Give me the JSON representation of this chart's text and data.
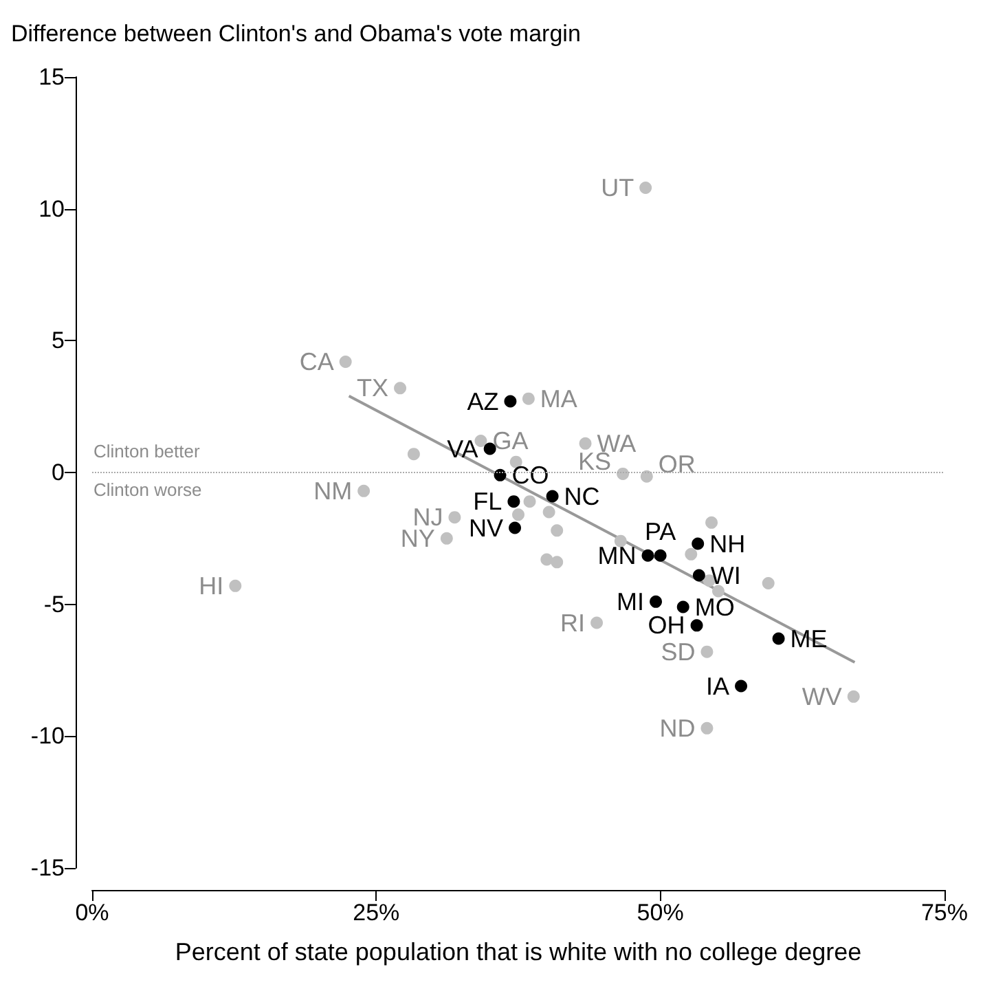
{
  "chart_data": {
    "type": "scatter",
    "ylabel": "Difference between Clinton's and Obama's vote margin",
    "xlabel": "Percent of state population that is white with no college degree",
    "xlim": [
      0,
      75
    ],
    "ylim": [
      -15,
      15
    ],
    "xticks": [
      {
        "value": 0,
        "label": "0%"
      },
      {
        "value": 25,
        "label": "25%"
      },
      {
        "value": 50,
        "label": "50%"
      },
      {
        "value": 75,
        "label": "75%"
      }
    ],
    "yticks": [
      -15,
      -10,
      -5,
      0,
      5,
      10,
      15
    ],
    "grid": false,
    "marker": "circle",
    "ref_lines": [
      {
        "axis": "y",
        "value": 0,
        "line_style": "dotted",
        "color": "#aaaaaa"
      }
    ],
    "annotations": [
      "Clinton better",
      "Clinton worse"
    ],
    "series": [
      {
        "color": "#c0c0c0",
        "x": [
          48.7,
          22.3,
          27.1,
          38.4,
          34.2,
          28.3,
          37.3,
          43.4,
          46.7,
          48.8,
          38.5,
          37.5,
          40.2,
          23.9,
          31.9,
          31.2,
          40.9,
          40.0,
          40.9,
          12.6,
          46.5,
          54.5,
          52.7,
          54.3,
          55.1,
          59.5,
          44.4,
          54.1,
          67.0,
          54.1
        ],
        "values": [
          10.8,
          4.2,
          3.2,
          2.8,
          1.2,
          0.7,
          0.4,
          1.1,
          -0.05,
          -0.15,
          -1.1,
          -1.6,
          -1.5,
          -0.7,
          -1.7,
          -2.5,
          -2.2,
          -3.3,
          -3.4,
          -4.3,
          -2.6,
          -1.9,
          -3.1,
          -4.1,
          -4.5,
          -4.2,
          -5.7,
          -6.8,
          -8.5,
          -9.7
        ],
        "value_labels": [
          "UT",
          "CA",
          "TX",
          "MA",
          "GA",
          null,
          null,
          "WA",
          "KS",
          "OR",
          null,
          null,
          null,
          "NM",
          "NJ",
          "NY",
          null,
          null,
          null,
          "HI",
          null,
          null,
          null,
          null,
          null,
          null,
          "RI",
          "SD",
          "WV",
          "ND"
        ]
      },
      {
        "color": "#000000",
        "x": [
          36.8,
          35.0,
          35.9,
          40.5,
          37.1,
          37.2,
          50.0,
          48.9,
          53.3,
          53.4,
          49.6,
          52.0,
          53.2,
          60.4,
          57.1
        ],
        "values": [
          2.7,
          0.9,
          -0.1,
          -0.9,
          -1.1,
          -2.1,
          -3.15,
          -3.15,
          -2.7,
          -3.9,
          -4.9,
          -5.1,
          -5.8,
          -6.3,
          -8.1
        ],
        "value_labels": [
          "AZ",
          "VA",
          "CO",
          "NC",
          "FL",
          "NV",
          "PA",
          "MN",
          "NH",
          "WI",
          "MI",
          "MO",
          "OH",
          "ME",
          "IA"
        ]
      },
      {
        "type": "line",
        "color": "#999999",
        "marker": "none",
        "x": [
          22.6,
          67.1
        ],
        "values": [
          2.9,
          -7.2
        ]
      }
    ]
  }
}
